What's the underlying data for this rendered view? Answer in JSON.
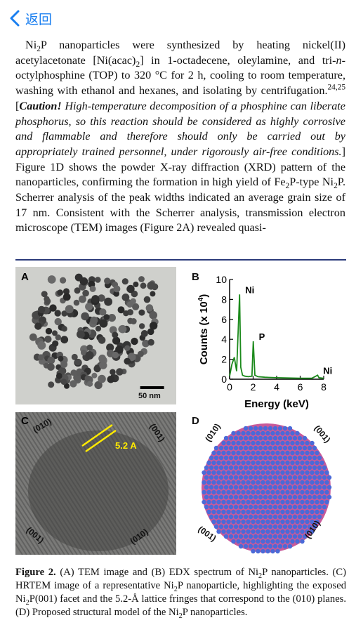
{
  "nav": {
    "back_label": "返回"
  },
  "paragraph_html": "Ni<sub>2</sub>P nanoparticles were synthesized by heating nickel(II) acetylacetonate [Ni(acac)<sub>2</sub>] in 1-octadecene, oleylamine, and tri-<i>n</i>-octylphosphine (TOP) to 320 °C for 2 h, cooling to room temperature, washing with ethanol and hexanes, and isolating by centrifugation.<sup>24,25</sup> [<i><b>Caution!</b> High-temperature decomposition of a phosphine can liberate phosphorus, so this reaction should be considered as highly corrosive and flammable and therefore should only be carried out by appropriately trained personnel, under rigorously air-free conditions.</i>] Figure 1D shows the powder X-ray diffraction (XRD) pattern of the nanoparticles, confirming the formation in high yield of Fe<sub>2</sub>P-type Ni<sub>2</sub>P. Scherrer analysis of the peak widths indicated an average grain size of 17 nm. Consistent with the Scherrer analysis, transmission electron microscope (TEM) images (Figure 2A) revealed quasi-",
  "figure": {
    "panel_a": {
      "label": "A",
      "scale_bar": "50 nm"
    },
    "panel_b": {
      "label": "B"
    },
    "panel_c": {
      "label": "C",
      "lattice_label": "5.2 A",
      "facets": [
        "(010)",
        "(001)",
        "(001)",
        "(010)"
      ]
    },
    "panel_d": {
      "label": "D",
      "facets": [
        "(010)",
        "(001)",
        "(001)",
        "(010)"
      ]
    },
    "caption_html": "<b>Figure 2.</b> (A) TEM image and (B) EDX spectrum of Ni<sub>2</sub>P nanoparticles. (C) HRTEM image of a representative Ni<sub>2</sub>P nanoparticle, highlighting the exposed Ni<sub>2</sub>P(001) facet and the 5.2-Å lattice fringes that correspond to the (010) planes. (D) Proposed structural model of the Ni<sub>2</sub>P nanoparticles."
  },
  "chart_data": {
    "type": "line",
    "title": "",
    "xlabel": "Energy (keV)",
    "ylabel": "Counts (x 10",
    "ylabel_sup": "4",
    "ylabel_close": ")",
    "xlim": [
      0,
      8
    ],
    "ylim": [
      0,
      10
    ],
    "xticks": [
      "0",
      "2",
      "4",
      "6",
      "8"
    ],
    "yticks": [
      "0",
      "2",
      "4",
      "6",
      "8",
      "10"
    ],
    "series": [
      {
        "x": [
          0,
          0.2,
          0.4,
          0.6,
          0.85,
          0.95,
          1.1,
          1.3,
          1.6,
          1.9,
          2.01,
          2.15,
          2.4,
          3,
          4,
          5,
          6,
          7,
          7.48,
          7.6,
          8
        ],
        "y": [
          0.3,
          1.5,
          2.2,
          0.8,
          8.5,
          1.2,
          0.4,
          0.3,
          0.25,
          0.3,
          3.8,
          0.4,
          0.25,
          0.2,
          0.15,
          0.12,
          0.1,
          0.1,
          0.4,
          0.15,
          0.1
        ],
        "color": "#1c8a1c"
      }
    ],
    "annotations": [
      {
        "text": "Ni",
        "x": 0.85,
        "y": 8.5
      },
      {
        "text": "P",
        "x": 2.01,
        "y": 3.8
      },
      {
        "text": "Ni",
        "x": 7.48,
        "y": 0.4
      }
    ]
  }
}
